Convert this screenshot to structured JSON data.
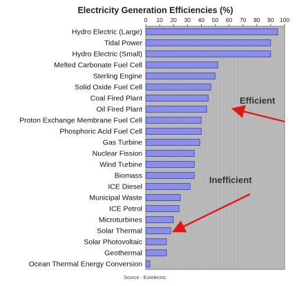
{
  "chart_data": {
    "type": "bar",
    "orientation": "horizontal",
    "title": "Electricity Generation Efficiencies (%)",
    "xlabel": "",
    "ylabel": "",
    "xlim": [
      0,
      100
    ],
    "x_ticks": [
      0,
      10,
      20,
      30,
      40,
      50,
      60,
      70,
      80,
      90,
      100
    ],
    "x_tick_labels": [
      "0",
      "10",
      "20",
      "30",
      "40",
      "50",
      "60",
      "70",
      "80",
      "90",
      "100"
    ],
    "grid": "vertical lines every 1 unit",
    "categories": [
      "Hydro Electric (Large)",
      "Tidal Power",
      "Hydro Electric (Small)",
      "Melted Carbonate Fuel Cell",
      "Sterling Engine",
      "Solid Oxide Fuel Cell",
      "Coal Fired Plant",
      "Oil Fired Plant",
      "Proton Exchange Membrane Fuel Cell",
      "Phosphoric Acid Fuel Cell",
      "Gas Turbine",
      "Nuclear Fission",
      "Wind Turbine",
      "Biomass",
      "ICE Diesel",
      "Municipal Waste",
      "ICE Petrol",
      "Microturbines",
      "Solar Thermal",
      "Solar Photovoltaic",
      "Geothermal",
      "Ocean Thermal Energy Conversion"
    ],
    "values": [
      95,
      90,
      90,
      52,
      50,
      47,
      45,
      44,
      40,
      40,
      39,
      35,
      35,
      35,
      32,
      25,
      24,
      20,
      18,
      15,
      15,
      3
    ],
    "annotations": [
      {
        "text": "Efficient",
        "arrow_points_to": "Oil Fired Plant"
      },
      {
        "text": "Inefficient",
        "arrow_points_to": "Solar Thermal"
      }
    ],
    "source": "Source - Eurelectric",
    "colors": {
      "bar_fill": "#8a8ee8",
      "bar_stroke": "#3a3fae",
      "plot_background": "#c8c8c8",
      "grid": "#8f8f8f",
      "arrow": "#e01818"
    }
  }
}
